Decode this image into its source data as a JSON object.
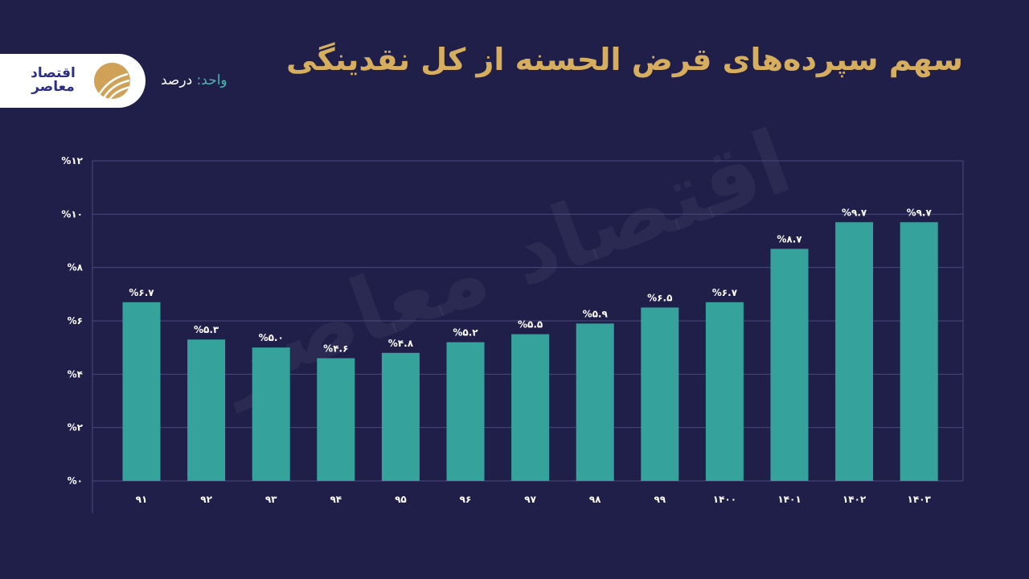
{
  "header": {
    "title": "سهم سپرده‌های قرض الحسنه از کل نقدینگی",
    "unit_key": "واحد:",
    "unit_value": "درصد"
  },
  "logo": {
    "text": "اقتصاد معاصر"
  },
  "watermark": "اقتصاد معاصر",
  "colors": {
    "background": "#201f4a",
    "bar": "#35a39c",
    "title": "#d6ae5d",
    "grid": "#4a4a7a"
  },
  "chart_data": {
    "type": "bar",
    "title": "سهم سپرده‌های قرض الحسنه از کل نقدینگی",
    "ylabel": "",
    "xlabel": "",
    "ylim": [
      0,
      12
    ],
    "grid": true,
    "categories": [
      "۹۱",
      "۹۲",
      "۹۳",
      "۹۴",
      "۹۵",
      "۹۶",
      "۹۷",
      "۹۸",
      "۹۹",
      "۱۴۰۰",
      "۱۴۰۱",
      "۱۴۰۲",
      "۱۴۰۳"
    ],
    "values": [
      6.7,
      5.3,
      5.0,
      4.6,
      4.8,
      5.2,
      5.5,
      5.9,
      6.5,
      6.7,
      8.7,
      9.7,
      9.7
    ],
    "data_labels": [
      "%۶.۷",
      "%۵.۳",
      "%۵.۰",
      "%۴.۶",
      "%۴.۸",
      "%۵.۲",
      "%۵.۵",
      "%۵.۹",
      "%۶.۵",
      "%۶.۷",
      "%۸.۷",
      "%۹.۷",
      "%۹.۷"
    ],
    "yticks": [
      0,
      2,
      4,
      6,
      8,
      10,
      12
    ],
    "ytick_labels": [
      "%۰",
      "%۲",
      "%۴",
      "%۶",
      "%۸",
      "%۱۰",
      "%۱۲"
    ]
  }
}
